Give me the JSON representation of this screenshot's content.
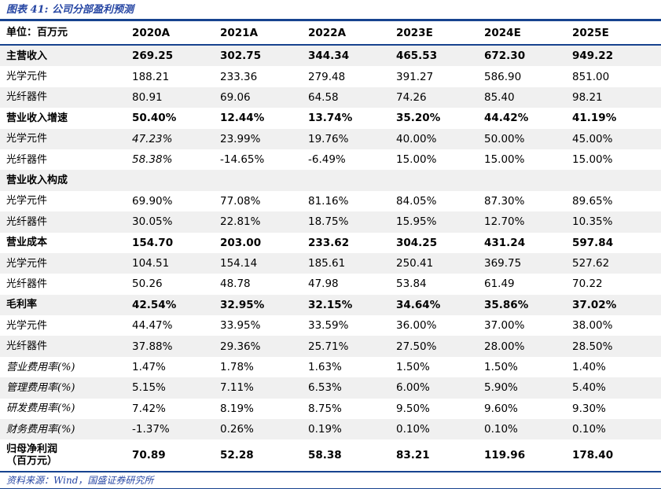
{
  "figure": {
    "title": "图表 41: 公司分部盈利预测",
    "source": "资料来源：Wind，国盛证券研究所"
  },
  "colors": {
    "navy_rule": "#17438F",
    "title_blue": "#2646A3",
    "stripe_gray": "#F0F0F0"
  },
  "table": {
    "unit_header": "单位：百万元",
    "columns": [
      "2020A",
      "2021A",
      "2022A",
      "2023E",
      "2024E",
      "2025E"
    ],
    "rows": [
      {
        "label": "主营收入",
        "bold": true,
        "values": [
          "269.25",
          "302.75",
          "344.34",
          "465.53",
          "672.30",
          "949.22"
        ]
      },
      {
        "label": "光学元件",
        "values": [
          "188.21",
          "233.36",
          "279.48",
          "391.27",
          "586.90",
          "851.00"
        ]
      },
      {
        "label": "光纤器件",
        "values": [
          "80.91",
          "69.06",
          "64.58",
          "74.26",
          "85.40",
          "98.21"
        ]
      },
      {
        "label": "营业收入增速",
        "bold": true,
        "values": [
          "50.40%",
          "12.44%",
          "13.74%",
          "35.20%",
          "44.42%",
          "41.19%"
        ]
      },
      {
        "label": "光学元件",
        "italic_first": true,
        "values": [
          "47.23%",
          "23.99%",
          "19.76%",
          "40.00%",
          "50.00%",
          "45.00%"
        ]
      },
      {
        "label": "光纤器件",
        "italic_first": true,
        "values": [
          "58.38%",
          "-14.65%",
          "-6.49%",
          "15.00%",
          "15.00%",
          "15.00%"
        ]
      },
      {
        "label": "营业收入构成",
        "bold": true,
        "values": [
          "",
          "",
          "",
          "",
          "",
          ""
        ]
      },
      {
        "label": "光学元件",
        "values": [
          "69.90%",
          "77.08%",
          "81.16%",
          "84.05%",
          "87.30%",
          "89.65%"
        ]
      },
      {
        "label": "光纤器件",
        "values": [
          "30.05%",
          "22.81%",
          "18.75%",
          "15.95%",
          "12.70%",
          "10.35%"
        ]
      },
      {
        "label": "营业成本",
        "bold": true,
        "values": [
          "154.70",
          "203.00",
          "233.62",
          "304.25",
          "431.24",
          "597.84"
        ]
      },
      {
        "label": "光学元件",
        "values": [
          "104.51",
          "154.14",
          "185.61",
          "250.41",
          "369.75",
          "527.62"
        ]
      },
      {
        "label": "光纤器件",
        "values": [
          "50.26",
          "48.78",
          "47.98",
          "53.84",
          "61.49",
          "70.22"
        ]
      },
      {
        "label": "毛利率",
        "bold": true,
        "values": [
          "42.54%",
          "32.95%",
          "32.15%",
          "34.64%",
          "35.86%",
          "37.02%"
        ]
      },
      {
        "label": "光学元件",
        "values": [
          "44.47%",
          "33.95%",
          "33.59%",
          "36.00%",
          "37.00%",
          "38.00%"
        ]
      },
      {
        "label": "光纤器件",
        "values": [
          "37.88%",
          "29.36%",
          "25.71%",
          "27.50%",
          "28.00%",
          "28.50%"
        ]
      },
      {
        "label": "营业费用率(%)",
        "label_italic": true,
        "values": [
          "1.47%",
          "1.78%",
          "1.63%",
          "1.50%",
          "1.50%",
          "1.40%"
        ]
      },
      {
        "label": "管理费用率(%)",
        "label_italic": true,
        "values": [
          "5.15%",
          "7.11%",
          "6.53%",
          "6.00%",
          "5.90%",
          "5.40%"
        ]
      },
      {
        "label": "研发费用率(%)",
        "label_italic": true,
        "values": [
          "7.42%",
          "8.19%",
          "8.75%",
          "9.50%",
          "9.60%",
          "9.30%"
        ]
      },
      {
        "label": "财务费用率(%)",
        "label_italic": true,
        "values": [
          "-1.37%",
          "0.26%",
          "0.19%",
          "0.10%",
          "0.10%",
          "0.10%"
        ]
      },
      {
        "label": "归母净利润\n（百万元）",
        "bold": true,
        "two_line": true,
        "values": [
          "70.89",
          "52.28",
          "58.38",
          "83.21",
          "119.96",
          "178.40"
        ]
      }
    ]
  }
}
